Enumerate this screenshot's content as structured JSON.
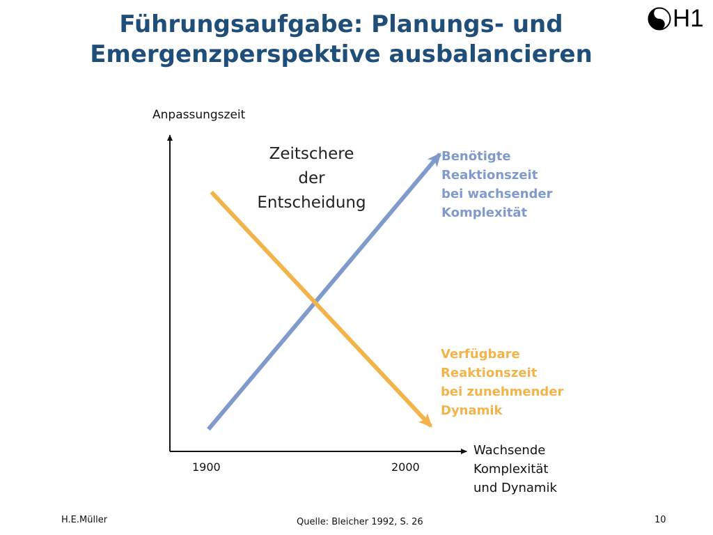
{
  "slide": {
    "title_line1": "Führungsaufgabe: Planungs- und",
    "title_line2": "Emergenzperspektive ausbalancieren",
    "logo_text": "H1",
    "logo_symbol": "yin-yang"
  },
  "diagram": {
    "y_axis_label": "Anpassungszeit",
    "x_axis_label_lines": [
      "Wachsende",
      "Komplexität",
      "und Dynamik"
    ],
    "x_ticks": [
      "1900",
      "2000"
    ],
    "center_label_lines": [
      "Zeitschere",
      "der",
      "Entscheidung"
    ],
    "blue_label_lines": [
      "Benötigte",
      "Reaktionszeit",
      "bei wachsender",
      "Komplexität"
    ],
    "orange_label_lines": [
      "Verfügbare",
      "Reaktionszeit",
      "bei zunehmender",
      "Dynamik"
    ]
  },
  "chart_data": {
    "type": "line",
    "x_ticks": [
      "1900",
      "2000"
    ],
    "xlabel": "Wachsende Komplexität und Dynamik",
    "ylabel": "Anpassungszeit",
    "series": [
      {
        "name": "Benötigte Reaktionszeit bei wachsender Komplexität",
        "color": "#7f9acb",
        "points": [
          {
            "x": 0.13,
            "y": 0.07
          },
          {
            "x": 0.91,
            "y": 0.94
          }
        ]
      },
      {
        "name": "Verfügbare Reaktionszeit bei zunehmender Dynamik",
        "color": "#f2b44a",
        "points": [
          {
            "x": 0.14,
            "y": 0.82
          },
          {
            "x": 0.88,
            "y": 0.08
          }
        ]
      }
    ]
  },
  "footer": {
    "author": "H.E.Müller",
    "source": "Quelle: Bleicher 1992, S. 26",
    "page": "10"
  }
}
